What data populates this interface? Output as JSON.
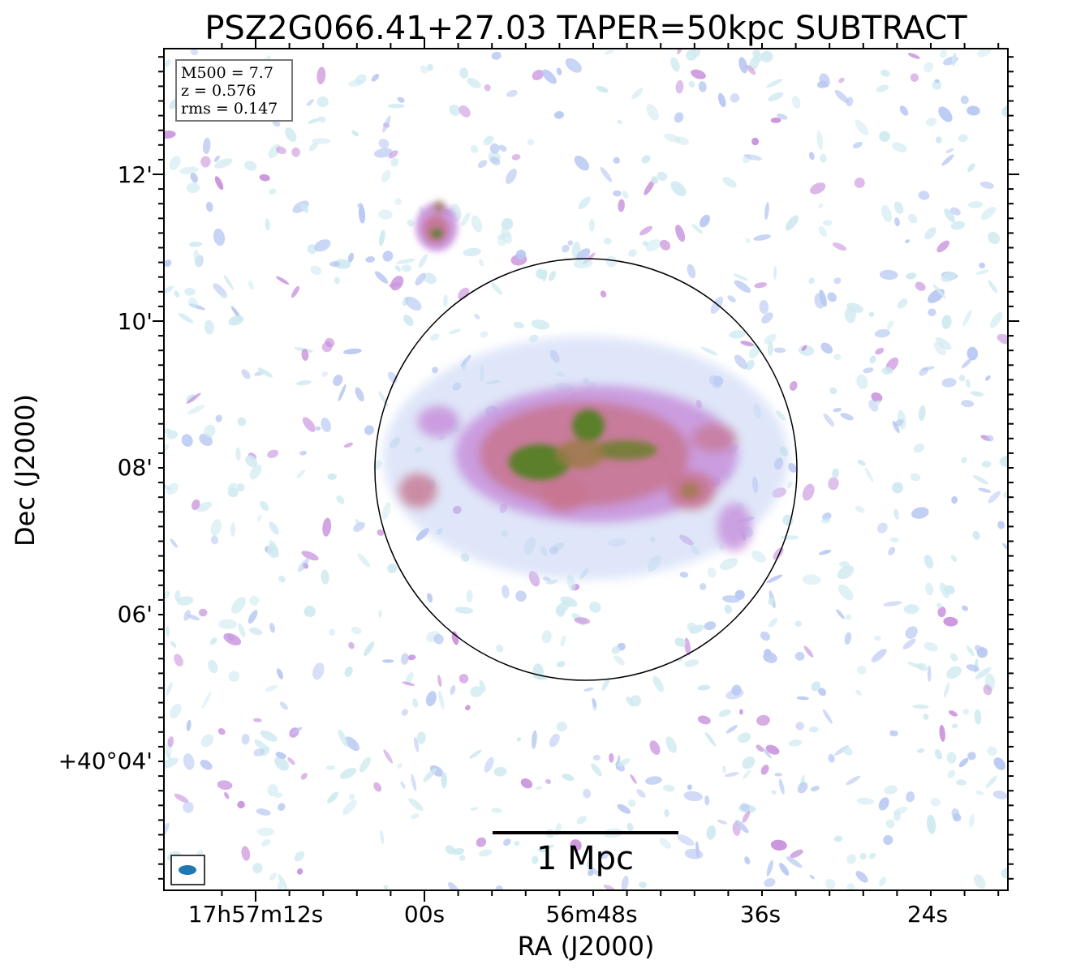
{
  "chart_data": {
    "type": "heatmap",
    "title": "PSZ2G066.41+27.03 TAPER=50kpc SUBTRACT",
    "xlabel": "RA (J2000)",
    "ylabel": "Dec (J2000)",
    "x_ticks": [
      "17h57m12s",
      "00s",
      "56m48s",
      "36s",
      "24s"
    ],
    "y_ticks": [
      "12'",
      "10'",
      "08'",
      "06'",
      "+40°04'"
    ],
    "info": {
      "m500": "M500 = 7.7",
      "z": "z = 0.576",
      "rms": "rms = 0.147"
    },
    "scale_bar_label": "1 Mpc",
    "colormap": [
      "#ffffff",
      "#cfeaf0",
      "#b8c8f2",
      "#c890dc",
      "#c8768f",
      "#9a7b45",
      "#4f7f1e"
    ],
    "grid": false
  }
}
